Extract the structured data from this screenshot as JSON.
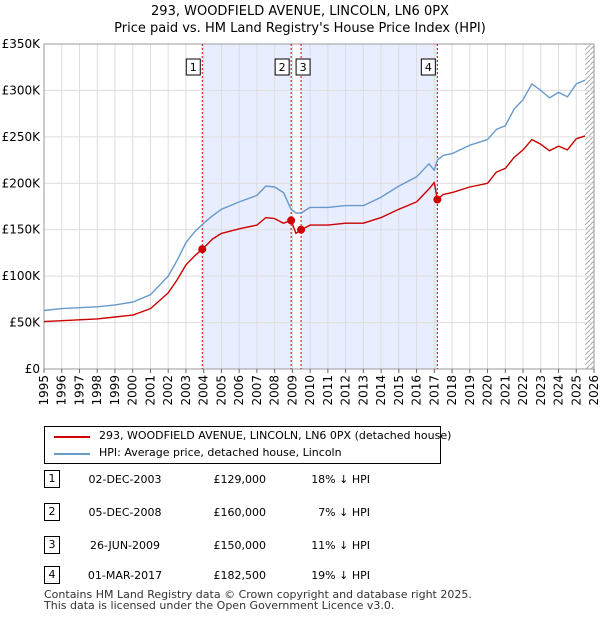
{
  "title_line1": "293, WOODFIELD AVENUE, LINCOLN, LN6 0PX",
  "title_line2": "Price paid vs. HM Land Registry's House Price Index (HPI)",
  "colors": {
    "property": "#cc0000",
    "hpi": "#6699cc",
    "shade": "#e8eeff",
    "grid": "#dddddd"
  },
  "legend": {
    "property_label": "293, WOODFIELD AVENUE, LINCOLN, LN6 0PX (detached house)",
    "hpi_label": "HPI: Average price, detached house, Lincoln"
  },
  "sales": [
    {
      "num": "1",
      "date": "02-DEC-2003",
      "price": "£129,000",
      "hpi": "18% ↓ HPI"
    },
    {
      "num": "2",
      "date": "05-DEC-2008",
      "price": "£160,000",
      "hpi": "7% ↓ HPI"
    },
    {
      "num": "3",
      "date": "26-JUN-2009",
      "price": "£150,000",
      "hpi": "11% ↓ HPI"
    },
    {
      "num": "4",
      "date": "01-MAR-2017",
      "price": "£182,500",
      "hpi": "19% ↓ HPI"
    }
  ],
  "footer": {
    "line1": "Contains HM Land Registry data © Crown copyright and database right 2025.",
    "line2": "This data is licensed under the Open Government Licence v3.0."
  },
  "chart_data": {
    "type": "line",
    "title": "293, WOODFIELD AVENUE, LINCOLN, LN6 0PX",
    "subtitle": "Price paid vs. HM Land Registry's House Price Index (HPI)",
    "xlabel": "",
    "ylabel": "",
    "xlim": [
      1995,
      2026
    ],
    "ylim": [
      0,
      350000
    ],
    "y_ticks": [
      {
        "value": 0,
        "label": "£0"
      },
      {
        "value": 50000,
        "label": "£50K"
      },
      {
        "value": 100000,
        "label": "£100K"
      },
      {
        "value": 150000,
        "label": "£150K"
      },
      {
        "value": 200000,
        "label": "£200K"
      },
      {
        "value": 250000,
        "label": "£250K"
      },
      {
        "value": 300000,
        "label": "£300K"
      },
      {
        "value": 350000,
        "label": "£350K"
      }
    ],
    "x_ticks": [
      "1995",
      "1996",
      "1997",
      "1998",
      "1999",
      "2000",
      "2001",
      "2002",
      "2003",
      "2004",
      "2005",
      "2006",
      "2007",
      "2008",
      "2009",
      "2010",
      "2011",
      "2012",
      "2013",
      "2014",
      "2015",
      "2016",
      "2017",
      "2018",
      "2019",
      "2020",
      "2021",
      "2022",
      "2023",
      "2024",
      "2025",
      "2026"
    ],
    "grid": true,
    "sale_markers": [
      {
        "label": "1",
        "x": 2003.92,
        "y": 129000
      },
      {
        "label": "2",
        "x": 2008.93,
        "y": 160000
      },
      {
        "label": "3",
        "x": 2009.49,
        "y": 150000
      },
      {
        "label": "4",
        "x": 2017.17,
        "y": 182500
      }
    ],
    "shaded_ranges": [
      [
        2003.92,
        2008.93
      ],
      [
        2009.49,
        2017.17
      ]
    ],
    "hatched_from": 2025.5,
    "series": [
      {
        "name": "HPI: Average price, detached house, Lincoln",
        "color": "#6699cc",
        "x": [
          1995,
          1996,
          1997,
          1998,
          1999,
          2000,
          2001,
          2002,
          2002.5,
          2003,
          2003.5,
          2004,
          2004.5,
          2005,
          2006,
          2007,
          2007.5,
          2008,
          2008.5,
          2008.93,
          2009.2,
          2009.49,
          2010,
          2011,
          2012,
          2013,
          2014,
          2015,
          2016,
          2016.7,
          2017,
          2017.17,
          2017.5,
          2018,
          2019,
          2020,
          2020.5,
          2021,
          2021.5,
          2022,
          2022.5,
          2023,
          2023.5,
          2024,
          2024.5,
          2025,
          2025.5
        ],
        "y": [
          63000,
          65000,
          66000,
          67000,
          69000,
          72000,
          80000,
          100000,
          117000,
          136000,
          148000,
          157000,
          165000,
          172000,
          180000,
          187000,
          197000,
          196000,
          190000,
          172000,
          168000,
          168000,
          174000,
          174000,
          176000,
          176000,
          185000,
          197000,
          207000,
          221000,
          214000,
          225000,
          230000,
          232000,
          241000,
          247000,
          258000,
          262000,
          280000,
          290000,
          307000,
          300000,
          292000,
          298000,
          293000,
          307000,
          311000
        ]
      },
      {
        "name": "293, WOODFIELD AVENUE, LINCOLN, LN6 0PX (detached house)",
        "color": "#cc0000",
        "x": [
          1995,
          1996,
          1997,
          1998,
          1999,
          2000,
          2001,
          2002,
          2002.5,
          2003,
          2003.5,
          2003.92,
          2004.5,
          2005,
          2006,
          2007,
          2007.5,
          2008,
          2008.5,
          2008.93,
          2009.2,
          2009.49,
          2010,
          2011,
          2012,
          2013,
          2014,
          2015,
          2016,
          2016.7,
          2017,
          2017.17,
          2017.5,
          2018,
          2019,
          2020,
          2020.5,
          2021,
          2021.5,
          2022,
          2022.5,
          2023,
          2023.5,
          2024,
          2024.5,
          2025,
          2025.5
        ],
        "y": [
          51000,
          52000,
          53000,
          54000,
          56000,
          58000,
          65000,
          82000,
          96000,
          112000,
          122000,
          129000,
          140000,
          146000,
          151000,
          155000,
          163000,
          162000,
          157000,
          160000,
          146000,
          150000,
          155000,
          155000,
          157000,
          157000,
          163000,
          172000,
          180000,
          194000,
          201000,
          182500,
          188000,
          190000,
          196000,
          200000,
          212000,
          216000,
          228000,
          236000,
          247000,
          242000,
          235000,
          240000,
          236000,
          248000,
          251000
        ]
      }
    ]
  }
}
